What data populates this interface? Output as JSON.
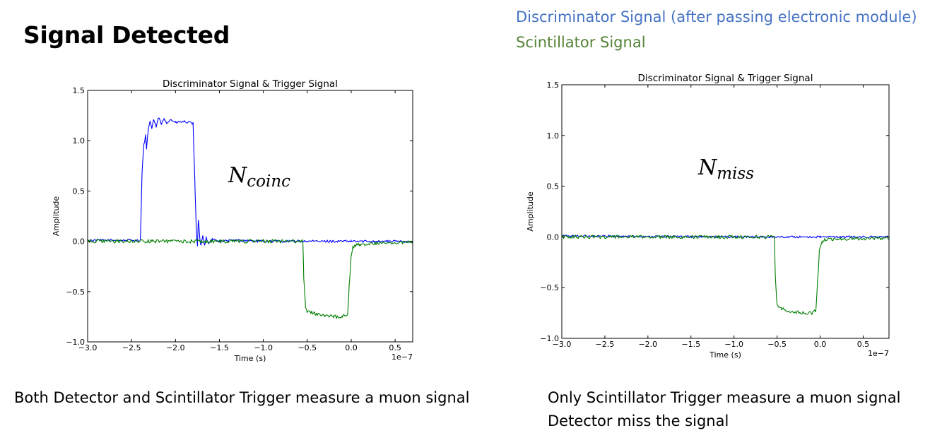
{
  "slide": {
    "title": "Signal Detected",
    "legend": {
      "discriminator": "Discriminator Signal (after passing electronic module)",
      "scintillator": "Scintillator Signal"
    },
    "caption_left": "Both Detector and Scintillator Trigger measure a muon signal",
    "caption_right": [
      "Only Scintillator Trigger measure a muon signal",
      "Detector miss the signal"
    ]
  },
  "colors": {
    "discriminator": "#0000ff",
    "scintillator": "#007f00",
    "legend_discriminator": "#4472c4",
    "legend_scintillator": "#548235"
  },
  "chart_data": [
    {
      "type": "line",
      "title": "Discriminator Signal & Trigger Signal",
      "xlabel": "Time (s)",
      "ylabel": "Amplitude",
      "x_offset_label": "1e−7",
      "xlim": [
        -3.0,
        0.7
      ],
      "ylim": [
        -1.0,
        1.5
      ],
      "xticks": [
        -3.0,
        -2.5,
        -2.0,
        -1.5,
        -1.0,
        -0.5,
        0.0,
        0.5
      ],
      "xtick_labels": [
        "−3.0",
        "−2.5",
        "−2.0",
        "−1.5",
        "−1.0",
        "−0.5",
        "0.0",
        "0.5"
      ],
      "yticks": [
        -1.0,
        -0.5,
        0.0,
        0.5,
        1.0,
        1.5
      ],
      "ytick_labels": [
        "−1.0",
        "−0.5",
        "0.0",
        "0.5",
        "1.0",
        "1.5"
      ],
      "grid": false,
      "annotation": {
        "base": "N",
        "sub": "coinc"
      },
      "series": [
        {
          "key": "discriminator",
          "x": [
            -3.0,
            -2.4,
            -2.38,
            -2.36,
            -2.34,
            -2.33,
            -2.31,
            -2.29,
            -2.27,
            -2.25,
            -2.22,
            -2.19,
            -2.16,
            -2.13,
            -2.1,
            -2.05,
            -2.0,
            -1.9,
            -1.8,
            -1.78,
            -1.76,
            -1.75,
            -1.74,
            -1.72,
            -1.71,
            -1.69,
            -1.67,
            -1.65,
            -1.62,
            -1.58,
            -1.5,
            -1.3,
            -1.0,
            -0.5,
            0.0,
            0.5,
            0.7
          ],
          "y": [
            0.01,
            0.01,
            0.7,
            0.96,
            1.05,
            0.92,
            1.1,
            1.2,
            1.12,
            1.21,
            1.14,
            1.23,
            1.16,
            1.22,
            1.18,
            1.21,
            1.18,
            1.19,
            1.17,
            0.6,
            0.05,
            -0.04,
            0.22,
            0.0,
            -0.05,
            0.06,
            -0.04,
            0.04,
            -0.02,
            0.02,
            0.0,
            0.01,
            0.0,
            0.0,
            0.0,
            0.0,
            0.0
          ],
          "noise": 0.012
        },
        {
          "key": "scintillator",
          "x": [
            -3.0,
            -0.55,
            -0.54,
            -0.52,
            -0.5,
            -0.4,
            -0.3,
            -0.2,
            -0.1,
            -0.04,
            -0.02,
            0.0,
            0.02,
            0.05,
            0.1,
            0.3,
            0.7
          ],
          "y": [
            0.0,
            0.0,
            -0.35,
            -0.65,
            -0.7,
            -0.72,
            -0.74,
            -0.75,
            -0.75,
            -0.72,
            -0.4,
            -0.15,
            -0.06,
            -0.04,
            -0.03,
            -0.02,
            -0.01
          ],
          "noise": 0.018
        }
      ]
    },
    {
      "type": "line",
      "title": "Discriminator Signal & Trigger Signal",
      "xlabel": "Time (s)",
      "ylabel": "Amplitude",
      "x_offset_label": "1e−7",
      "xlim": [
        -3.0,
        0.8
      ],
      "ylim": [
        -1.0,
        1.5
      ],
      "xticks": [
        -3.0,
        -2.5,
        -2.0,
        -1.5,
        -1.0,
        -0.5,
        0.0,
        0.5
      ],
      "xtick_labels": [
        "−3.0",
        "−2.5",
        "−2.0",
        "−1.5",
        "−1.0",
        "−0.5",
        "0.0",
        "0.5"
      ],
      "yticks": [
        -1.0,
        -0.5,
        0.0,
        0.5,
        1.0,
        1.5
      ],
      "ytick_labels": [
        "−1.0",
        "−0.5",
        "0.0",
        "0.5",
        "1.0",
        "1.5"
      ],
      "grid": false,
      "annotation": {
        "base": "N",
        "sub": "miss"
      },
      "series": [
        {
          "key": "discriminator",
          "x": [
            -3.0,
            -1.0,
            0.0,
            0.8
          ],
          "y": [
            0.01,
            0.0,
            0.0,
            0.0
          ],
          "noise": 0.01
        },
        {
          "key": "scintillator",
          "x": [
            -3.0,
            -0.53,
            -0.52,
            -0.5,
            -0.45,
            -0.3,
            -0.2,
            -0.1,
            -0.05,
            -0.03,
            -0.01,
            0.02,
            0.05,
            0.2,
            0.8
          ],
          "y": [
            0.0,
            0.0,
            -0.4,
            -0.66,
            -0.71,
            -0.74,
            -0.75,
            -0.75,
            -0.73,
            -0.45,
            -0.15,
            -0.05,
            -0.03,
            -0.02,
            -0.01
          ],
          "noise": 0.017
        }
      ]
    }
  ]
}
